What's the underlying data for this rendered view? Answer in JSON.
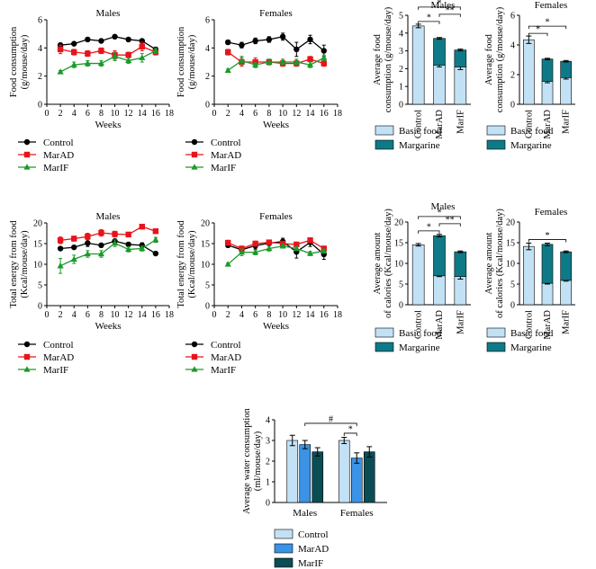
{
  "colors": {
    "control": "#000000",
    "marad": "#e8141c",
    "marif": "#1a9a2a",
    "basic": "#c3e1f5",
    "margarine": "#0e7a87",
    "water_control": "#c3e1f5",
    "water_marad": "#3a93e6",
    "water_marif": "#0a4d55"
  },
  "chart_data": [
    {
      "id": "food-males",
      "type": "line",
      "title": "Males",
      "xlabel": "Weeks",
      "ylabel": [
        "Food consumption",
        "(g/mouse/day)"
      ],
      "xlim": [
        0,
        18
      ],
      "ylim": [
        0,
        6
      ],
      "xticks": [
        0,
        2,
        4,
        6,
        8,
        10,
        12,
        14,
        16,
        18
      ],
      "yticks": [
        0,
        2,
        4,
        6
      ],
      "x": [
        2,
        4,
        6,
        8,
        10,
        12,
        14,
        16
      ],
      "series": [
        {
          "name": "Control",
          "marker": "circle",
          "values": [
            4.2,
            4.3,
            4.6,
            4.5,
            4.8,
            4.6,
            4.5,
            3.9
          ],
          "errors": [
            0.15,
            0.1,
            0.1,
            0.1,
            0.1,
            0.1,
            0.1,
            0.15
          ]
        },
        {
          "name": "MarAD",
          "marker": "square",
          "values": [
            3.9,
            3.7,
            3.6,
            3.8,
            3.5,
            3.5,
            4.1,
            3.7
          ],
          "errors": [
            0.3,
            0.2,
            0.2,
            0.2,
            0.3,
            0.2,
            0.3,
            0.2
          ]
        },
        {
          "name": "MarIF",
          "marker": "triangle",
          "values": [
            2.3,
            2.8,
            2.9,
            2.9,
            3.4,
            3.1,
            3.3,
            3.8
          ],
          "errors": [
            0.1,
            0.2,
            0.2,
            0.2,
            0.3,
            0.2,
            0.3,
            0.2
          ]
        }
      ],
      "legend": [
        "Control",
        "MarAD",
        "MarIF"
      ]
    },
    {
      "id": "food-females",
      "type": "line",
      "title": "Females",
      "xlabel": "Weeks",
      "ylabel": [
        "Food consumption",
        "(g/mouse/day)"
      ],
      "xlim": [
        0,
        18
      ],
      "ylim": [
        0,
        6
      ],
      "xticks": [
        0,
        2,
        4,
        6,
        8,
        10,
        12,
        14,
        16,
        18
      ],
      "yticks": [
        0,
        2,
        4,
        6
      ],
      "x": [
        2,
        4,
        6,
        8,
        10,
        12,
        14,
        16
      ],
      "series": [
        {
          "name": "Control",
          "marker": "circle",
          "values": [
            4.4,
            4.2,
            4.5,
            4.6,
            4.8,
            3.9,
            4.6,
            3.8
          ],
          "errors": [
            0.15,
            0.2,
            0.2,
            0.2,
            0.25,
            0.5,
            0.3,
            0.4
          ]
        },
        {
          "name": "MarAD",
          "marker": "square",
          "values": [
            3.7,
            3.0,
            3.0,
            3.0,
            2.9,
            2.9,
            3.2,
            2.9
          ],
          "errors": [
            0.2,
            0.3,
            0.3,
            0.2,
            0.2,
            0.2,
            0.2,
            0.2
          ]
        },
        {
          "name": "MarIF",
          "marker": "triangle",
          "values": [
            2.4,
            3.1,
            2.8,
            3.0,
            3.0,
            3.0,
            2.8,
            3.3
          ],
          "errors": [
            0.1,
            0.3,
            0.2,
            0.2,
            0.2,
            0.2,
            0.2,
            0.2
          ]
        }
      ],
      "legend": [
        "Control",
        "MarAD",
        "MarIF"
      ]
    },
    {
      "id": "energy-males",
      "type": "line",
      "title": "Males",
      "xlabel": "Weeks",
      "ylabel": [
        "Total energy from food",
        "(Kcal/mouse/day)"
      ],
      "xlim": [
        0,
        18
      ],
      "ylim": [
        0,
        20
      ],
      "xticks": [
        0,
        2,
        4,
        6,
        8,
        10,
        12,
        14,
        16,
        18
      ],
      "yticks": [
        0,
        5,
        10,
        15,
        20
      ],
      "x": [
        2,
        4,
        6,
        8,
        10,
        12,
        14,
        16
      ],
      "series": [
        {
          "name": "Control",
          "marker": "circle",
          "values": [
            13.8,
            14.1,
            15.1,
            14.6,
            15.6,
            14.8,
            14.6,
            12.6
          ],
          "errors": [
            0.4,
            0.4,
            0.8,
            0.4,
            0.5,
            0.4,
            0.6,
            0.3
          ]
        },
        {
          "name": "MarAD",
          "marker": "square",
          "values": [
            15.8,
            16.2,
            16.7,
            17.6,
            17.3,
            17.2,
            19.1,
            18.0
          ],
          "errors": [
            0.8,
            0.6,
            0.8,
            0.8,
            0.7,
            0.5,
            0.5,
            0.4
          ]
        },
        {
          "name": "MarIF",
          "marker": "triangle",
          "values": [
            9.6,
            11.2,
            12.5,
            12.5,
            15.1,
            13.6,
            13.8,
            15.9
          ],
          "errors": [
            1.8,
            1.0,
            0.8,
            0.8,
            0.8,
            0.6,
            0.6,
            0.6
          ]
        }
      ],
      "legend": [
        "Control",
        "MarAD",
        "MarIF"
      ]
    },
    {
      "id": "energy-females",
      "type": "line",
      "title": "Females",
      "xlabel": "Weeks",
      "ylabel": [
        "Total energy from food",
        "(Kcal/mouse/day)"
      ],
      "xlim": [
        0,
        18
      ],
      "ylim": [
        0,
        20
      ],
      "xticks": [
        0,
        2,
        4,
        6,
        8,
        10,
        12,
        14,
        16,
        18
      ],
      "yticks": [
        0,
        5,
        10,
        15,
        20
      ],
      "x": [
        2,
        4,
        6,
        8,
        10,
        12,
        14,
        16
      ],
      "series": [
        {
          "name": "Control",
          "marker": "circle",
          "values": [
            14.6,
            13.5,
            14.5,
            15.1,
            15.5,
            13.0,
            15.3,
            12.4
          ],
          "errors": [
            0.5,
            0.5,
            0.8,
            0.5,
            0.8,
            1.5,
            1.0,
            1.2
          ]
        },
        {
          "name": "MarAD",
          "marker": "square",
          "values": [
            15.2,
            13.8,
            15.0,
            15.3,
            15.0,
            14.8,
            15.8,
            13.8
          ],
          "errors": [
            0.6,
            0.6,
            0.6,
            0.5,
            0.5,
            0.5,
            0.6,
            0.6
          ]
        },
        {
          "name": "MarIF",
          "marker": "triangle",
          "values": [
            10.0,
            12.9,
            12.9,
            13.8,
            14.4,
            13.8,
            12.6,
            13.2
          ],
          "errors": [
            0.3,
            0.8,
            0.6,
            0.6,
            0.5,
            0.5,
            0.5,
            0.5
          ]
        }
      ],
      "legend": [
        "Control",
        "MarAD",
        "MarIF"
      ]
    },
    {
      "id": "avg-food-males",
      "type": "bar",
      "stacked": true,
      "title": "Males",
      "ylabel": [
        "Average food",
        "consumption (g/mouse/day)"
      ],
      "ylim": [
        0,
        5
      ],
      "yticks": [
        0,
        1,
        2,
        3,
        4,
        5
      ],
      "categories": [
        "Control",
        "MarAD",
        "MarIF"
      ],
      "series": [
        {
          "name": "Basic food",
          "values": [
            4.4,
            2.2,
            2.1
          ],
          "errors": [
            0.1,
            0.1,
            0.15
          ]
        },
        {
          "name": "Margarine",
          "values": [
            0,
            1.5,
            0.95
          ],
          "errors": [
            0,
            0.05,
            0.05
          ]
        }
      ],
      "significance": [
        {
          "from": 0,
          "to": 2,
          "label": "*",
          "level": 3
        },
        {
          "from": 0,
          "to": 1,
          "label": "*",
          "level": 1
        },
        {
          "from": 1,
          "to": 2,
          "label": "**",
          "level": 2
        }
      ],
      "legend": [
        "Basic food",
        "Margarine"
      ]
    },
    {
      "id": "avg-food-females",
      "type": "bar",
      "stacked": true,
      "title": "Females",
      "ylabel": [
        "Average food",
        "consumption (g/mouse/day)"
      ],
      "ylim": [
        0,
        6
      ],
      "yticks": [
        0,
        2,
        4,
        6
      ],
      "categories": [
        "Control",
        "MarAD",
        "MarIF"
      ],
      "series": [
        {
          "name": "Basic food",
          "values": [
            4.35,
            1.55,
            1.8
          ],
          "errors": [
            0.25,
            0.1,
            0.1
          ]
        },
        {
          "name": "Margarine",
          "values": [
            0,
            1.5,
            1.1
          ],
          "errors": [
            0,
            0.05,
            0.05
          ]
        }
      ],
      "significance": [
        {
          "from": 0,
          "to": 2,
          "label": "*",
          "level": 2
        },
        {
          "from": 0,
          "to": 1,
          "label": "*",
          "level": 1
        }
      ],
      "legend": [
        "Basic food",
        "Margarine"
      ]
    },
    {
      "id": "avg-cal-males",
      "type": "bar",
      "stacked": true,
      "title": "Males",
      "ylabel": [
        "Average amount",
        "of calories (Kcal/mouse/day)"
      ],
      "ylim": [
        0,
        20
      ],
      "yticks": [
        0,
        5,
        10,
        15,
        20
      ],
      "categories": [
        "Control",
        "MarAD",
        "MarIF"
      ],
      "series": [
        {
          "name": "Basic food",
          "values": [
            14.5,
            7.0,
            6.8
          ],
          "errors": [
            0.3,
            0.2,
            0.6
          ]
        },
        {
          "name": "Margarine",
          "values": [
            0,
            9.7,
            6.0
          ],
          "errors": [
            0,
            0.3,
            0.2
          ]
        }
      ],
      "significance": [
        {
          "from": 0,
          "to": 2,
          "label": "*",
          "level": 3
        },
        {
          "from": 0,
          "to": 1,
          "label": "*",
          "level": 1
        },
        {
          "from": 1,
          "to": 2,
          "label": "**",
          "level": 2
        }
      ],
      "legend": [
        "Basic food",
        "Margarine"
      ]
    },
    {
      "id": "avg-cal-females",
      "type": "bar",
      "stacked": true,
      "title": "Females",
      "ylabel": [
        "Average amount",
        "of calories (Kcal/mouse/day)"
      ],
      "ylim": [
        0,
        20
      ],
      "yticks": [
        0,
        5,
        10,
        15,
        20
      ],
      "categories": [
        "Control",
        "MarAD",
        "MarIF"
      ],
      "series": [
        {
          "name": "Basic food",
          "values": [
            14.1,
            5.2,
            5.9
          ],
          "errors": [
            0.8,
            0.2,
            0.2
          ]
        },
        {
          "name": "Margarine",
          "values": [
            0,
            9.4,
            6.9
          ],
          "errors": [
            0,
            0.3,
            0.2
          ]
        }
      ],
      "significance": [
        {
          "from": 0,
          "to": 2,
          "label": "*",
          "level": 1
        }
      ],
      "legend": [
        "Basic food",
        "Margarine"
      ]
    },
    {
      "id": "water",
      "type": "bar",
      "stacked": false,
      "title": "",
      "ylabel": [
        "Average water consumption",
        "(ml/mouse/day)"
      ],
      "ylim": [
        0,
        4
      ],
      "yticks": [
        0,
        1,
        2,
        3,
        4
      ],
      "categories": [
        "Males",
        "Females"
      ],
      "series": [
        {
          "name": "Control",
          "values": [
            3.0,
            3.0
          ],
          "errors": [
            0.25,
            0.15
          ]
        },
        {
          "name": "MarAD",
          "values": [
            2.8,
            2.15
          ],
          "errors": [
            0.2,
            0.25
          ]
        },
        {
          "name": "MarIF",
          "values": [
            2.45,
            2.45
          ],
          "errors": [
            0.2,
            0.25
          ]
        }
      ],
      "significance": [
        {
          "from": [
            0,
            1
          ],
          "to": [
            1,
            1
          ],
          "label": "#",
          "level": 2
        },
        {
          "from": [
            1,
            0
          ],
          "to": [
            1,
            1
          ],
          "label": "*",
          "level": 1
        }
      ],
      "legend": [
        "Control",
        "MarAD",
        "MarIF"
      ]
    }
  ]
}
